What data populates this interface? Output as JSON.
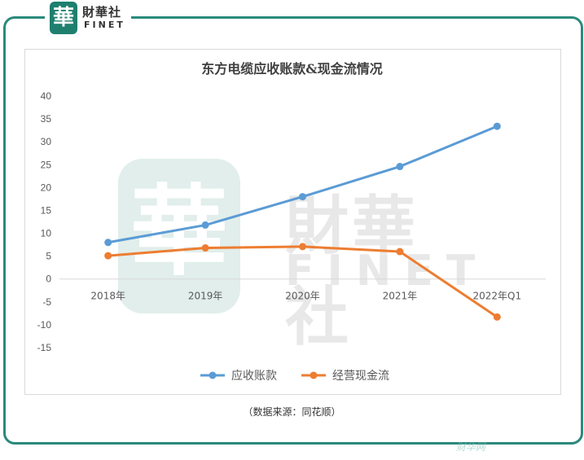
{
  "logo": {
    "glyph": "華",
    "name_cn": "財華社",
    "name_en": "FINET"
  },
  "watermark": {
    "glyph": "華",
    "name_cn": "財華社",
    "name_en": "FINET"
  },
  "chart_data": {
    "type": "line",
    "title": "东方电缆应收账款&现金流情况",
    "categories": [
      "2018年",
      "2019年",
      "2020年",
      "2021年",
      "2022年Q1"
    ],
    "series": [
      {
        "name": "应收账款",
        "color": "#5b9bd5",
        "values": [
          8.0,
          11.8,
          18.0,
          24.6,
          33.4
        ]
      },
      {
        "name": "经营现金流",
        "color": "#ed7d31",
        "values": [
          5.1,
          6.8,
          7.1,
          6.0,
          -8.3
        ]
      }
    ],
    "ylim": [
      -15,
      40
    ],
    "yticks": [
      -15,
      -10,
      -5,
      0,
      5,
      10,
      15,
      20,
      25,
      30,
      35,
      40
    ],
    "grid": false,
    "legend_position": "bottom"
  },
  "source_note": "（数据来源：同花顺）",
  "corner_watermark": "财华网"
}
